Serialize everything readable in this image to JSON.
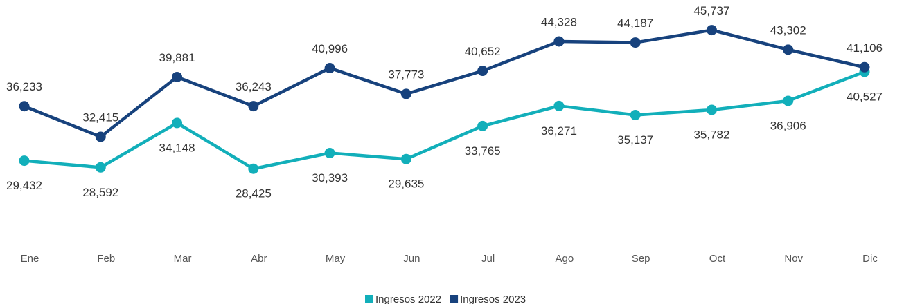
{
  "chart_data": {
    "type": "line",
    "categories": [
      "Ene",
      "Feb",
      "Mar",
      "Abr",
      "May",
      "Jun",
      "Jul",
      "Ago",
      "Sep",
      "Oct",
      "Nov",
      "Dic"
    ],
    "series": [
      {
        "name": "Ingresos 2022",
        "color": "#12afba",
        "values": [
          29432,
          28592,
          34148,
          28425,
          30393,
          29635,
          33765,
          36271,
          35137,
          35782,
          36906,
          40527
        ],
        "value_labels": [
          "29,432",
          "28,592",
          "34,148",
          "28,425",
          "30,393",
          "29,635",
          "33,765",
          "36,271",
          "35,137",
          "35,782",
          "36,906",
          "40,527"
        ]
      },
      {
        "name": "Ingresos 2023",
        "color": "#17427d",
        "values": [
          36233,
          32415,
          39881,
          36243,
          40996,
          37773,
          40652,
          44328,
          44187,
          45737,
          43302,
          41106
        ],
        "value_labels": [
          "36,233",
          "32,415",
          "39,881",
          "36,243",
          "40,996",
          "37,773",
          "40,652",
          "44,328",
          "44,187",
          "45,737",
          "43,302",
          "41,106"
        ]
      }
    ],
    "ylim": [
      19300,
      49500
    ],
    "legend": "bottom"
  }
}
